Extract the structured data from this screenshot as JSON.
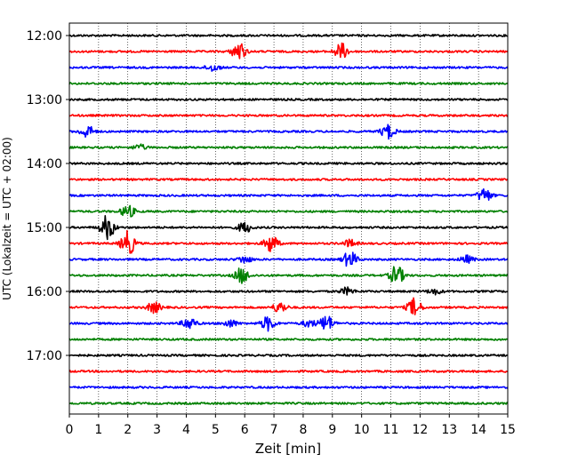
{
  "chart_data": {
    "type": "line",
    "title": "",
    "xlabel": "Zeit  [min]",
    "ylabel": "UTC (Lokalzeit = UTC + 02:00)",
    "xlim": [
      0,
      15
    ],
    "x_ticks": [
      "0",
      "1",
      "2",
      "3",
      "4",
      "5",
      "6",
      "7",
      "8",
      "9",
      "10",
      "11",
      "12",
      "13",
      "14",
      "15"
    ],
    "y_ticks": [
      "12:00",
      "13:00",
      "14:00",
      "15:00",
      "16:00",
      "17:00"
    ],
    "grid": "vertical dotted",
    "trace_interval_minutes": 15,
    "trace_colors": [
      "#000000",
      "#ff0000",
      "#0000ff",
      "#008000"
    ],
    "traces": [
      {
        "start": "12:00",
        "events": []
      },
      {
        "start": "12:15",
        "events": [
          [
            5.8,
            10
          ],
          [
            9.3,
            9
          ]
        ]
      },
      {
        "start": "12:30",
        "events": [
          [
            4.9,
            4
          ]
        ]
      },
      {
        "start": "12:45",
        "events": []
      },
      {
        "start": "13:00",
        "events": []
      },
      {
        "start": "13:15",
        "events": []
      },
      {
        "start": "13:30",
        "events": [
          [
            0.6,
            7
          ],
          [
            10.9,
            8
          ]
        ]
      },
      {
        "start": "13:45",
        "events": [
          [
            2.4,
            3
          ]
        ]
      },
      {
        "start": "14:00",
        "events": []
      },
      {
        "start": "14:15",
        "events": []
      },
      {
        "start": "14:30",
        "events": [
          [
            14.2,
            8
          ]
        ]
      },
      {
        "start": "14:45",
        "events": [
          [
            2.0,
            7
          ]
        ]
      },
      {
        "start": "15:00",
        "events": [
          [
            1.3,
            14
          ],
          [
            6.0,
            6
          ]
        ]
      },
      {
        "start": "15:15",
        "events": [
          [
            2.0,
            14
          ],
          [
            6.9,
            10
          ],
          [
            9.6,
            4
          ]
        ]
      },
      {
        "start": "15:30",
        "events": [
          [
            6.0,
            4
          ],
          [
            9.6,
            9
          ],
          [
            13.6,
            4
          ]
        ]
      },
      {
        "start": "15:45",
        "events": [
          [
            5.9,
            9
          ],
          [
            11.2,
            11
          ]
        ]
      },
      {
        "start": "16:00",
        "events": [
          [
            9.5,
            4
          ],
          [
            12.5,
            3
          ]
        ]
      },
      {
        "start": "16:15",
        "events": [
          [
            2.9,
            6
          ],
          [
            7.2,
            6
          ],
          [
            11.8,
            10
          ]
        ]
      },
      {
        "start": "16:30",
        "events": [
          [
            4.1,
            7
          ],
          [
            6.8,
            8
          ],
          [
            8.8,
            9
          ],
          [
            5.5,
            4
          ],
          [
            8.2,
            4
          ]
        ]
      },
      {
        "start": "16:45",
        "events": []
      },
      {
        "start": "17:00",
        "events": []
      },
      {
        "start": "17:15",
        "events": []
      },
      {
        "start": "17:30",
        "events": []
      },
      {
        "start": "17:45",
        "events": []
      }
    ]
  }
}
